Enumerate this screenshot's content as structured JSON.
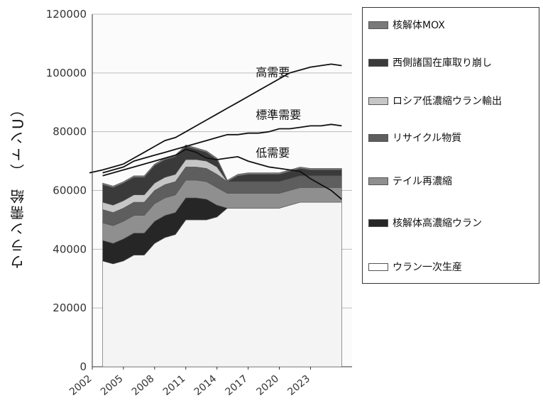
{
  "chart_data": {
    "type": "area",
    "ylabel": "ウラン需給　（トンU）",
    "ylim": [
      0,
      120000
    ],
    "yticks": [
      0,
      20000,
      40000,
      60000,
      80000,
      100000,
      120000
    ],
    "xlim": [
      2002,
      2027
    ],
    "xticks": [
      2002,
      2005,
      2008,
      2011,
      2014,
      2017,
      2020,
      2023
    ],
    "x": [
      2003,
      2004,
      2005,
      2006,
      2007,
      2008,
      2009,
      2010,
      2011,
      2012,
      2013,
      2014,
      2015,
      2016,
      2017,
      2018,
      2019,
      2020,
      2021,
      2022,
      2023,
      2024,
      2025,
      2026
    ],
    "supply_series": [
      {
        "name": "ウラン一次生産",
        "color": "#f4f4f4",
        "values": [
          36000,
          35000,
          36000,
          38000,
          38000,
          42000,
          44000,
          45000,
          50000,
          50000,
          50000,
          51000,
          54000,
          54000,
          54000,
          54000,
          54000,
          54000,
          55000,
          56000,
          56000,
          56000,
          56000,
          56000
        ]
      },
      {
        "name": "核解体高濃縮ウラン",
        "color": "#262626",
        "values": [
          7000,
          7000,
          7500,
          7500,
          7500,
          7500,
          7500,
          7500,
          7500,
          7500,
          7000,
          4000,
          0,
          0,
          0,
          0,
          0,
          0,
          0,
          0,
          0,
          0,
          0,
          0
        ]
      },
      {
        "name": "テイル再濃縮",
        "color": "#8f8f8f",
        "values": [
          6000,
          6000,
          6000,
          6000,
          6000,
          6000,
          6000,
          6000,
          6000,
          6000,
          6000,
          6000,
          5000,
          5000,
          5000,
          5000,
          5000,
          5000,
          5000,
          5000,
          5000,
          5000,
          5000,
          5000
        ]
      },
      {
        "name": "リサイクル物質",
        "color": "#5e5e5e",
        "values": [
          4500,
          4500,
          4500,
          4500,
          4500,
          4500,
          4500,
          4500,
          4500,
          4500,
          4500,
          4500,
          4000,
          4000,
          4000,
          4000,
          4000,
          4000,
          4000,
          4000,
          4000,
          4000,
          4000,
          4000
        ]
      },
      {
        "name": "ロシア低濃縮ウラン輸出",
        "color": "#c6c6c6",
        "values": [
          2500,
          2500,
          2500,
          2500,
          2500,
          2500,
          2500,
          2500,
          2500,
          2500,
          2500,
          2500,
          0,
          0,
          0,
          0,
          0,
          0,
          0,
          0,
          0,
          0,
          0,
          0
        ]
      },
      {
        "name": "西側諸国在庫取り崩し",
        "color": "#3a3a3a",
        "values": [
          6000,
          6000,
          6000,
          6000,
          6000,
          6000,
          6000,
          6000,
          4500,
          3500,
          3000,
          2500,
          0,
          2000,
          2500,
          2500,
          2500,
          2500,
          2500,
          2500,
          2000,
          2000,
          2000,
          2000
        ]
      },
      {
        "name": "核解体MOX",
        "color": "#7a7a7a",
        "values": [
          500,
          500,
          500,
          500,
          500,
          500,
          500,
          500,
          500,
          500,
          500,
          500,
          500,
          500,
          500,
          500,
          500,
          500,
          500,
          500,
          500,
          500,
          500,
          500
        ]
      }
    ],
    "demand_series": [
      {
        "label": "高需要",
        "values": [
          67000,
          68000,
          69000,
          71000,
          73000,
          75000,
          77000,
          78000,
          80000,
          82000,
          84000,
          86000,
          88000,
          90000,
          92000,
          94000,
          96000,
          98000,
          100000,
          101000,
          102000,
          102500,
          103000,
          102500
        ]
      },
      {
        "label": "標準需要",
        "values": [
          66000,
          67000,
          68000,
          70000,
          71000,
          72000,
          73000,
          74000,
          75000,
          76000,
          77000,
          78000,
          79000,
          79000,
          79500,
          79500,
          80000,
          81000,
          81000,
          81500,
          82000,
          82000,
          82500,
          82000
        ]
      },
      {
        "label": "低需要",
        "values": [
          65000,
          66000,
          67000,
          68000,
          69000,
          70000,
          71000,
          72000,
          74000,
          73000,
          71000,
          70500,
          71000,
          71500,
          70000,
          69000,
          68000,
          67500,
          67000,
          66500,
          64000,
          62000,
          60000,
          57000
        ]
      }
    ],
    "legend": [
      "核解体MOX",
      "西側諸国在庫取り崩し",
      "ロシア低濃縮ウラン輸出",
      "リサイクル物質",
      "テイル再濃縮",
      "核解体高濃縮ウラン",
      "ウラン一次生産"
    ],
    "grid": "horizontal",
    "legend_position": "right"
  }
}
